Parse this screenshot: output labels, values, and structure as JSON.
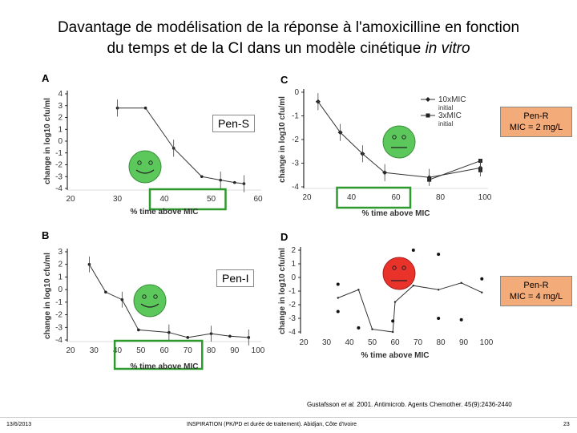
{
  "title": {
    "line1": "Davantage de modélisation de la réponse à l'amoxicilline en fonction",
    "line2_prefix": "du temps et de la CI dans un modèle cinétique ",
    "line2_italic": "in vitro"
  },
  "labels": {
    "pen_s": "Pen-S",
    "pen_i": "Pen-I",
    "pen_r_c_1": "Pen-R",
    "pen_r_c_2": "MIC = 2 mg/L",
    "pen_r_d_1": "Pen-R",
    "pen_r_d_2": "MIC = 4 mg/L"
  },
  "citation": {
    "prefix": "Gustafsson ",
    "italic": "et al.",
    "suffix": " 2001. Antimicrob. Agents Chemother. 45(9):2436-2440"
  },
  "footer": {
    "date": "13/6/2013",
    "center": "INSPIRATION (PK/PD et durée de traitement). Abidjan, Côte d'Ivoire",
    "page": "23"
  },
  "colors": {
    "smiley_green": "#5cc85c",
    "smiley_red": "#e8322a",
    "highlight_green": "#2e9a2e",
    "pen_r_bg": "#f4ab7a"
  },
  "chart_data": [
    {
      "panel": "A",
      "type": "line",
      "xlabel": "% time above MIC",
      "ylabel": "change in log10 cfu/ml",
      "xticks": [
        20,
        30,
        40,
        50,
        60
      ],
      "yticks": [
        4,
        3,
        2,
        1,
        0,
        -1,
        -2,
        -3,
        -4
      ],
      "xlim": [
        20,
        60
      ],
      "ylim": [
        -4,
        4
      ],
      "highlight": [
        40,
        50
      ],
      "series": [
        {
          "x": [
            30,
            36,
            42,
            48,
            52,
            55,
            57
          ],
          "y": [
            2.8,
            2.8,
            -0.6,
            -3.0,
            -3.3,
            -3.5,
            -3.6
          ]
        }
      ]
    },
    {
      "panel": "B",
      "type": "line",
      "xlabel": "% time above MIC",
      "ylabel": "change in log10 cfu/ml",
      "xticks": [
        20,
        30,
        40,
        50,
        60,
        70,
        80,
        90,
        100
      ],
      "yticks": [
        3,
        2,
        1,
        0,
        -1,
        -2,
        -3,
        -4
      ],
      "xlim": [
        20,
        100
      ],
      "ylim": [
        -4,
        3
      ],
      "highlight": [
        45,
        70
      ],
      "series": [
        {
          "x": [
            28,
            35,
            42,
            49,
            62,
            70,
            80,
            88,
            96
          ],
          "y": [
            2.0,
            -0.2,
            -0.8,
            -3.2,
            -3.4,
            -3.8,
            -3.5,
            -3.7,
            -3.8
          ]
        }
      ]
    },
    {
      "panel": "C",
      "type": "line",
      "xlabel": "% time above MIC",
      "ylabel": "change in log10 cfu/ml",
      "xticks": [
        20,
        40,
        60,
        80,
        100
      ],
      "yticks": [
        0,
        -1,
        -2,
        -3,
        -4
      ],
      "xlim": [
        20,
        100
      ],
      "ylim": [
        -4,
        0
      ],
      "highlight": [
        40,
        60
      ],
      "legend": [
        "10xMIC",
        "initial",
        "3xMIC",
        "initial"
      ],
      "series": [
        {
          "name": "10xMIC initial",
          "x": [
            25,
            35,
            45,
            55,
            75,
            98
          ],
          "y": [
            -0.4,
            -1.7,
            -2.6,
            -3.4,
            -3.6,
            -3.2
          ]
        },
        {
          "name": "3xMIC initial",
          "x": [
            75,
            98,
            98
          ],
          "y": [
            -3.7,
            -2.9,
            -3.3
          ]
        }
      ]
    },
    {
      "panel": "D",
      "type": "scatter",
      "xlabel": "% time above MIC",
      "ylabel": "change in log10 cfu/ml",
      "xticks": [
        20,
        30,
        40,
        50,
        60,
        70,
        80,
        90,
        100
      ],
      "yticks": [
        2,
        1,
        0,
        -1,
        -2,
        -3,
        -4
      ],
      "xlim": [
        20,
        100
      ],
      "ylim": [
        -4,
        2
      ],
      "series": [
        {
          "x": [
            35,
            44,
            50,
            59,
            60,
            68,
            79,
            89,
            98
          ],
          "y": [
            -1.5,
            -0.9,
            -3.8,
            -4.0,
            -1.8,
            -0.6,
            -0.9,
            -0.4,
            -1.1
          ]
        }
      ],
      "scatter_points": [
        {
          "x": 35,
          "y": -0.5
        },
        {
          "x": 35,
          "y": -2.5
        },
        {
          "x": 44,
          "y": -3.7
        },
        {
          "x": 59,
          "y": -3.2
        },
        {
          "x": 68,
          "y": 2.0
        },
        {
          "x": 79,
          "y": 1.7
        },
        {
          "x": 79,
          "y": -3.0
        },
        {
          "x": 89,
          "y": -3.1
        },
        {
          "x": 98,
          "y": -0.1
        }
      ]
    }
  ]
}
